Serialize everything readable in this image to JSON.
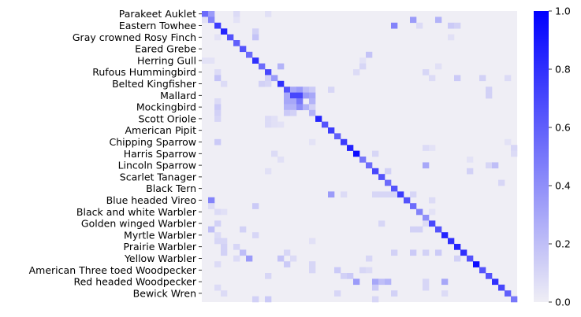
{
  "chart_data": {
    "type": "heatmap",
    "title": "",
    "xlabel": "",
    "ylabel": "",
    "n_classes": 50,
    "row_tick_labels": [
      "Parakeet Auklet",
      "Eastern Towhee",
      "Gray crowned Rosy Finch",
      "Eared Grebe",
      "Herring Gull",
      "Rufous Hummingbird",
      "Belted Kingfisher",
      "Mallard",
      "Mockingbird",
      "Scott Oriole",
      "American Pipit",
      "Chipping Sparrow",
      "Harris Sparrow",
      "Lincoln Sparrow",
      "Scarlet Tanager",
      "Black Tern",
      "Blue headed Vireo",
      "Black and white Warbler",
      "Golden winged Warbler",
      "Myrtle Warbler",
      "Prairie Warbler",
      "Yellow Warbler",
      "American Three toed Woodpecker",
      "Red headed Woodpecker",
      "Bewick Wren"
    ],
    "row_tick_indices": [
      0,
      2,
      4,
      6,
      8,
      10,
      12,
      14,
      16,
      18,
      20,
      22,
      24,
      26,
      28,
      30,
      32,
      34,
      36,
      38,
      40,
      42,
      44,
      46,
      48
    ],
    "diagonal": [
      0.55,
      0.45,
      0.75,
      0.85,
      0.65,
      0.6,
      0.65,
      0.55,
      0.8,
      0.55,
      0.7,
      0.35,
      0.8,
      0.65,
      0.7,
      0.5,
      0.25,
      0.25,
      0.85,
      0.65,
      0.75,
      0.6,
      0.75,
      0.85,
      0.95,
      0.5,
      0.55,
      0.7,
      0.65,
      0.55,
      0.65,
      0.75,
      0.65,
      0.55,
      0.45,
      0.4,
      0.7,
      0.65,
      0.85,
      0.8,
      0.85,
      0.8,
      0.65,
      0.95,
      0.65,
      0.65,
      0.8,
      0.7,
      0.6,
      0.5
    ],
    "off_diagonal": [
      [
        0,
        1,
        0.35
      ],
      [
        0,
        5,
        0.08
      ],
      [
        0,
        10,
        0.06
      ],
      [
        1,
        0,
        0.06
      ],
      [
        1,
        5,
        0.05
      ],
      [
        1,
        33,
        0.35
      ],
      [
        1,
        37,
        0.25
      ],
      [
        2,
        30,
        0.45
      ],
      [
        2,
        34,
        0.08
      ],
      [
        2,
        39,
        0.15
      ],
      [
        2,
        40,
        0.12
      ],
      [
        3,
        8,
        0.12
      ],
      [
        4,
        8,
        0.18
      ],
      [
        4,
        2,
        0.05
      ],
      [
        4,
        39,
        0.06
      ],
      [
        7,
        26,
        0.18
      ],
      [
        8,
        0,
        0.05
      ],
      [
        8,
        1,
        0.05
      ],
      [
        8,
        25,
        0.05
      ],
      [
        9,
        12,
        0.25
      ],
      [
        9,
        25,
        0.1
      ],
      [
        9,
        37,
        0.06
      ],
      [
        10,
        2,
        0.08
      ],
      [
        10,
        24,
        0.08
      ],
      [
        10,
        35,
        0.1
      ],
      [
        11,
        2,
        0.18
      ],
      [
        11,
        10,
        0.12
      ],
      [
        11,
        36,
        0.08
      ],
      [
        11,
        40,
        0.15
      ],
      [
        11,
        44,
        0.12
      ],
      [
        11,
        48,
        0.08
      ],
      [
        12,
        3,
        0.08
      ],
      [
        12,
        9,
        0.12
      ],
      [
        12,
        10,
        0.1
      ],
      [
        13,
        14,
        0.3
      ],
      [
        13,
        15,
        0.35
      ],
      [
        13,
        16,
        0.2
      ],
      [
        13,
        17,
        0.15
      ],
      [
        13,
        20,
        0.1
      ],
      [
        13,
        45,
        0.12
      ],
      [
        14,
        13,
        0.3
      ],
      [
        14,
        15,
        0.7
      ],
      [
        14,
        16,
        0.35
      ],
      [
        14,
        17,
        0.3
      ],
      [
        14,
        45,
        0.12
      ],
      [
        15,
        13,
        0.3
      ],
      [
        15,
        14,
        0.3
      ],
      [
        15,
        17,
        0.25
      ],
      [
        15,
        2,
        0.08
      ],
      [
        16,
        2,
        0.15
      ],
      [
        16,
        13,
        0.25
      ],
      [
        16,
        14,
        0.25
      ],
      [
        16,
        15,
        0.4
      ],
      [
        16,
        17,
        0.12
      ],
      [
        17,
        2,
        0.12
      ],
      [
        17,
        13,
        0.15
      ],
      [
        17,
        14,
        0.12
      ],
      [
        18,
        2,
        0.1
      ],
      [
        18,
        10,
        0.08
      ],
      [
        18,
        11,
        0.06
      ],
      [
        19,
        10,
        0.08
      ],
      [
        19,
        11,
        0.06
      ],
      [
        19,
        12,
        0.05
      ],
      [
        22,
        2,
        0.15
      ],
      [
        22,
        17,
        0.05
      ],
      [
        22,
        48,
        0.05
      ],
      [
        23,
        35,
        0.08
      ],
      [
        23,
        36,
        0.05
      ],
      [
        23,
        49,
        0.1
      ],
      [
        24,
        11,
        0.08
      ],
      [
        24,
        27,
        0.1
      ],
      [
        24,
        49,
        0.08
      ],
      [
        25,
        12,
        0.06
      ],
      [
        25,
        42,
        0.05
      ],
      [
        26,
        35,
        0.3
      ],
      [
        26,
        45,
        0.1
      ],
      [
        26,
        46,
        0.2
      ],
      [
        27,
        10,
        0.06
      ],
      [
        27,
        29,
        0.12
      ],
      [
        27,
        42,
        0.12
      ],
      [
        29,
        47,
        0.1
      ],
      [
        31,
        20,
        0.35
      ],
      [
        31,
        22,
        0.08
      ],
      [
        31,
        27,
        0.1
      ],
      [
        31,
        28,
        0.1
      ],
      [
        31,
        29,
        0.1
      ],
      [
        31,
        30,
        0.1
      ],
      [
        31,
        33,
        0.1
      ],
      [
        32,
        1,
        0.45
      ],
      [
        32,
        36,
        0.08
      ],
      [
        33,
        1,
        0.08
      ],
      [
        33,
        8,
        0.15
      ],
      [
        34,
        2,
        0.08
      ],
      [
        34,
        3,
        0.06
      ],
      [
        34,
        36,
        0.05
      ],
      [
        36,
        2,
        0.12
      ],
      [
        36,
        28,
        0.1
      ],
      [
        36,
        35,
        0.08
      ],
      [
        37,
        1,
        0.2
      ],
      [
        37,
        6,
        0.12
      ],
      [
        37,
        33,
        0.12
      ],
      [
        37,
        34,
        0.12
      ],
      [
        38,
        2,
        0.08
      ],
      [
        38,
        8,
        0.1
      ],
      [
        39,
        2,
        0.1
      ],
      [
        39,
        3,
        0.1
      ],
      [
        39,
        17,
        0.06
      ],
      [
        40,
        3,
        0.12
      ],
      [
        40,
        5,
        0.1
      ],
      [
        41,
        3,
        0.12
      ],
      [
        41,
        6,
        0.2
      ],
      [
        41,
        13,
        0.1
      ],
      [
        41,
        30,
        0.12
      ],
      [
        41,
        33,
        0.15
      ],
      [
        41,
        35,
        0.12
      ],
      [
        41,
        37,
        0.15
      ],
      [
        42,
        5,
        0.08
      ],
      [
        42,
        7,
        0.35
      ],
      [
        42,
        12,
        0.18
      ],
      [
        42,
        14,
        0.08
      ],
      [
        42,
        26,
        0.1
      ],
      [
        42,
        40,
        0.12
      ],
      [
        43,
        2,
        0.08
      ],
      [
        43,
        13,
        0.15
      ],
      [
        43,
        17,
        0.1
      ],
      [
        44,
        17,
        0.1
      ],
      [
        44,
        21,
        0.15
      ],
      [
        44,
        25,
        0.1
      ],
      [
        44,
        26,
        0.08
      ],
      [
        45,
        10,
        0.1
      ],
      [
        45,
        22,
        0.12
      ],
      [
        45,
        23,
        0.15
      ],
      [
        46,
        24,
        0.35
      ],
      [
        46,
        27,
        0.3
      ],
      [
        46,
        28,
        0.2
      ],
      [
        46,
        29,
        0.25
      ],
      [
        46,
        35,
        0.1
      ],
      [
        46,
        38,
        0.3
      ],
      [
        47,
        2,
        0.08
      ],
      [
        47,
        27,
        0.15
      ],
      [
        47,
        35,
        0.1
      ],
      [
        48,
        3,
        0.08
      ],
      [
        48,
        21,
        0.1
      ],
      [
        48,
        30,
        0.12
      ],
      [
        48,
        38,
        0.08
      ],
      [
        49,
        8,
        0.12
      ],
      [
        49,
        10,
        0.15
      ],
      [
        49,
        27,
        0.1
      ]
    ],
    "colorbar": {
      "min": 0.0,
      "max": 1.0,
      "ticks": [
        "0.0",
        "0.2",
        "0.4",
        "0.6",
        "0.8",
        "1.0"
      ],
      "color_low": "#efeef5",
      "color_high": "#0000ff"
    },
    "grid": false,
    "legend": "colorbar-right"
  }
}
